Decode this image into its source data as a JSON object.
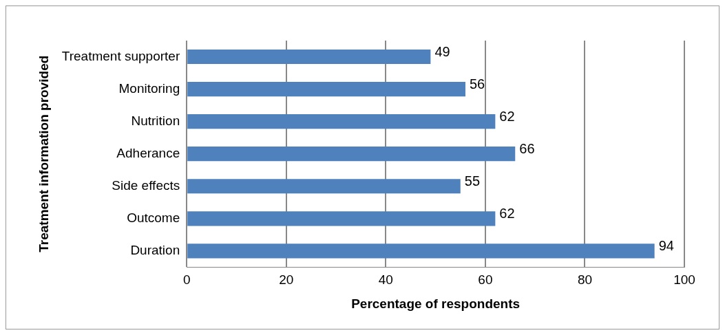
{
  "chart_data": {
    "type": "bar",
    "orientation": "horizontal",
    "xlabel": "Percentage of respondents",
    "ylabel": "Treatment information provided",
    "categories": [
      "Treatment supporter",
      "Monitoring",
      "Nutrition",
      "Adherance",
      "Side effects",
      "Outcome",
      "Duration"
    ],
    "values": [
      49,
      56,
      62,
      66,
      55,
      62,
      94
    ],
    "color": "#4f81bd",
    "xlim": [
      0,
      100
    ],
    "xticks": [
      0,
      20,
      40,
      60,
      80,
      100
    ],
    "grid": "x",
    "data_labels": true,
    "legend": false
  }
}
